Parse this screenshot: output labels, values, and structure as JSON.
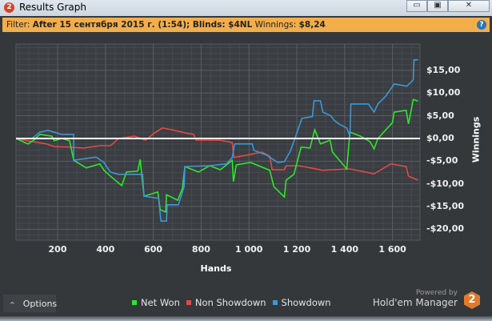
{
  "window": {
    "title": "Results Graph",
    "icon": "hm2-logo-icon",
    "controls": [
      "minimize-icon",
      "maximize-icon",
      "close-icon"
    ]
  },
  "filter": {
    "label": "Filter:",
    "value": "After 15 сентября 2015 г. (1:54); Blinds: $4NL",
    "winnings_label": "Winnings:",
    "winnings_value": "$8,24"
  },
  "footer": {
    "options_label": "Options",
    "powered_by": "Powered by",
    "brand": "Hold'em Manager",
    "brand_badge": "2"
  },
  "chart_data": {
    "type": "line",
    "xlabel": "Hands",
    "ylabel": "Winnings",
    "xlim": [
      26,
      1715
    ],
    "ylim": [
      -22.4,
      20.8
    ],
    "xticks": [
      200,
      400,
      600,
      800,
      1000,
      1200,
      1400,
      1600
    ],
    "xtick_labels": [
      "200",
      "400",
      "600",
      "800",
      "1 000",
      "1 200",
      "1 400",
      "1 600"
    ],
    "yticks": [
      15,
      10,
      5,
      0,
      -5,
      -10,
      -15,
      -20
    ],
    "ytick_labels": [
      "$15,00",
      "$10,00",
      "$5,00",
      "$0,00",
      "-$5,00",
      "-$10,00",
      "-$15,00",
      "-$20,00"
    ],
    "grid": true,
    "legend": "bottom",
    "zero_line_color": "#ffffff",
    "series": [
      {
        "name": "Net Won",
        "color": "#2ee62e",
        "points": [
          [
            26,
            0
          ],
          [
            76,
            -1.2
          ],
          [
            100,
            -0.4
          ],
          [
            126,
            0.9
          ],
          [
            176,
            0.5
          ],
          [
            186,
            -0.5
          ],
          [
            217,
            0
          ],
          [
            250,
            -0.5
          ],
          [
            267,
            -4.8
          ],
          [
            320,
            -6.5
          ],
          [
            377,
            -5.6
          ],
          [
            394,
            -7
          ],
          [
            427,
            -8.6
          ],
          [
            468,
            -10.4
          ],
          [
            488,
            -7.4
          ],
          [
            535,
            -7.2
          ],
          [
            545,
            -4.6
          ],
          [
            550,
            -7.2
          ],
          [
            561,
            -12.7
          ],
          [
            619,
            -11.8
          ],
          [
            629,
            -15.7
          ],
          [
            652,
            -16.2
          ],
          [
            655,
            -12.4
          ],
          [
            702,
            -13.6
          ],
          [
            722,
            -11
          ],
          [
            732,
            -6.2
          ],
          [
            789,
            -7.4
          ],
          [
            836,
            -6
          ],
          [
            880,
            -6.9
          ],
          [
            930,
            -4.8
          ],
          [
            935,
            -9.5
          ],
          [
            947,
            -5.8
          ],
          [
            1007,
            -5.3
          ],
          [
            1087,
            -7
          ],
          [
            1104,
            -10.6
          ],
          [
            1148,
            -12.9
          ],
          [
            1155,
            -9.2
          ],
          [
            1188,
            -7.9
          ],
          [
            1218,
            -1.9
          ],
          [
            1255,
            -2.1
          ],
          [
            1275,
            1.9
          ],
          [
            1299,
            -1.2
          ],
          [
            1339,
            -0.4
          ],
          [
            1349,
            -3
          ],
          [
            1409,
            -6.7
          ],
          [
            1422,
            1.4
          ],
          [
            1466,
            0.5
          ],
          [
            1506,
            -0.7
          ],
          [
            1523,
            -2.3
          ],
          [
            1539,
            0
          ],
          [
            1600,
            3.5
          ],
          [
            1607,
            5.8
          ],
          [
            1657,
            6.2
          ],
          [
            1667,
            3.2
          ],
          [
            1687,
            8.6
          ],
          [
            1707,
            8.2
          ]
        ]
      },
      {
        "name": "Non Showdown",
        "color": "#e04a4a",
        "points": [
          [
            26,
            0
          ],
          [
            76,
            -0.5
          ],
          [
            153,
            -1.2
          ],
          [
            186,
            -1.8
          ],
          [
            243,
            -1.9
          ],
          [
            310,
            -2.1
          ],
          [
            377,
            -1.6
          ],
          [
            421,
            -1.6
          ],
          [
            455,
            0
          ],
          [
            521,
            0.5
          ],
          [
            568,
            -0.4
          ],
          [
            602,
            1.1
          ],
          [
            638,
            2.3
          ],
          [
            689,
            1.8
          ],
          [
            736,
            1.2
          ],
          [
            769,
            0.9
          ],
          [
            779,
            -0.4
          ],
          [
            880,
            -0.4
          ],
          [
            930,
            -0.9
          ],
          [
            937,
            -4.2
          ],
          [
            1007,
            -3.5
          ],
          [
            1054,
            -3
          ],
          [
            1087,
            -3.9
          ],
          [
            1097,
            -6.9
          ],
          [
            1148,
            -6.9
          ],
          [
            1155,
            -6
          ],
          [
            1208,
            -6
          ],
          [
            1309,
            -7
          ],
          [
            1422,
            -6.7
          ],
          [
            1523,
            -7.8
          ],
          [
            1593,
            -5.6
          ],
          [
            1657,
            -6.2
          ],
          [
            1667,
            -8.3
          ],
          [
            1707,
            -9.2
          ]
        ]
      },
      {
        "name": "Showdown",
        "color": "#3d97d8",
        "points": [
          [
            26,
            0
          ],
          [
            93,
            0
          ],
          [
            126,
            1.4
          ],
          [
            160,
            1.8
          ],
          [
            217,
            0.9
          ],
          [
            267,
            0.9
          ],
          [
            267,
            -4.8
          ],
          [
            361,
            -4.1
          ],
          [
            394,
            -5.3
          ],
          [
            420,
            -7.4
          ],
          [
            455,
            -7.9
          ],
          [
            555,
            -7.9
          ],
          [
            561,
            -12.7
          ],
          [
            622,
            -13.2
          ],
          [
            632,
            -18.2
          ],
          [
            655,
            -18.2
          ],
          [
            658,
            -14.6
          ],
          [
            705,
            -14.6
          ],
          [
            729,
            -10.6
          ],
          [
            732,
            -6.2
          ],
          [
            836,
            -6
          ],
          [
            906,
            -5.6
          ],
          [
            930,
            -4.2
          ],
          [
            940,
            -1.2
          ],
          [
            1014,
            -1.2
          ],
          [
            1020,
            -2.6
          ],
          [
            1074,
            -3.7
          ],
          [
            1121,
            -5.3
          ],
          [
            1148,
            -5.1
          ],
          [
            1171,
            -3
          ],
          [
            1181,
            -1.7
          ],
          [
            1221,
            4.4
          ],
          [
            1265,
            4.8
          ],
          [
            1272,
            8.3
          ],
          [
            1299,
            8.3
          ],
          [
            1309,
            5.8
          ],
          [
            1342,
            5
          ],
          [
            1356,
            4
          ],
          [
            1376,
            3.2
          ],
          [
            1409,
            2.3
          ],
          [
            1422,
            0.5
          ],
          [
            1426,
            7.6
          ],
          [
            1499,
            7.6
          ],
          [
            1523,
            5.8
          ],
          [
            1539,
            7.6
          ],
          [
            1573,
            9.4
          ],
          [
            1607,
            12
          ],
          [
            1660,
            11.5
          ],
          [
            1687,
            12.9
          ],
          [
            1690,
            17.3
          ],
          [
            1707,
            17.3
          ]
        ]
      }
    ]
  }
}
